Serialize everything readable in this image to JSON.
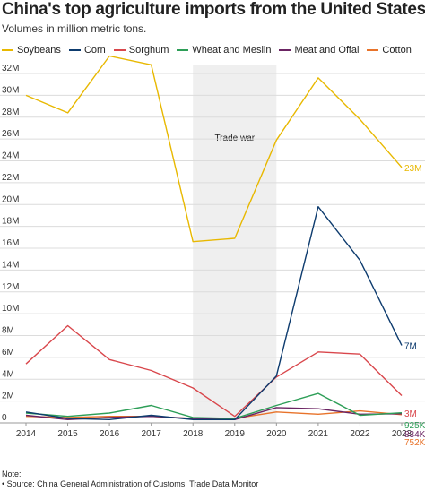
{
  "header": {
    "title": "China's top agriculture imports from the United States",
    "subtitle": "Volumes in million metric tons."
  },
  "colors": {
    "Soybeans": "#e8b800",
    "Corn": "#0d3b6e",
    "Sorghum": "#d9474c",
    "Wheat and Meslin": "#2d9e57",
    "Meat and Offal": "#6b2463",
    "Cotton": "#e8732a",
    "shade": "#efefef",
    "grid": "#dcdcdc"
  },
  "chart_data": {
    "type": "line",
    "title": "China's top agriculture imports from the United States",
    "subtitle": "Volumes in million metric tons.",
    "x": [
      "2014",
      "2015",
      "2016",
      "2017",
      "2018",
      "2019",
      "2020",
      "2021",
      "2022",
      "2023"
    ],
    "ylim": [
      0,
      32
    ],
    "yticks": [
      "0",
      "2M",
      "4M",
      "6M",
      "8M",
      "10M",
      "12M",
      "14M",
      "16M",
      "18M",
      "20M",
      "22M",
      "24M",
      "26M",
      "28M",
      "30M",
      "32M"
    ],
    "grid": true,
    "legend": "top-left",
    "series": [
      {
        "name": "Soybeans",
        "values": [
          30.0,
          28.4,
          33.6,
          32.8,
          16.6,
          16.9,
          25.9,
          31.6,
          27.8,
          23.4
        ],
        "end_label": "23M"
      },
      {
        "name": "Corn",
        "values": [
          1.0,
          0.4,
          0.3,
          0.7,
          0.3,
          0.3,
          4.3,
          19.8,
          14.9,
          7.1
        ],
        "end_label": "7M"
      },
      {
        "name": "Sorghum",
        "values": [
          5.4,
          8.9,
          5.8,
          4.8,
          3.2,
          0.6,
          4.2,
          6.5,
          6.3,
          2.5
        ],
        "end_label": "3M"
      },
      {
        "name": "Wheat and Meslin",
        "values": [
          0.9,
          0.6,
          0.9,
          1.6,
          0.5,
          0.4,
          1.6,
          2.7,
          0.7,
          0.925
        ],
        "end_label": "925K"
      },
      {
        "name": "Meat and Offal",
        "values": [
          0.7,
          0.3,
          0.5,
          0.6,
          0.4,
          0.3,
          1.4,
          1.3,
          0.8,
          0.834
        ],
        "end_label": "834K"
      },
      {
        "name": "Cotton",
        "values": [
          0.6,
          0.5,
          0.6,
          0.6,
          0.4,
          0.4,
          1.0,
          0.8,
          1.1,
          0.752
        ],
        "end_label": "752K"
      }
    ],
    "annotations": [
      {
        "type": "shaded-range",
        "from": "2018",
        "to": "2020",
        "label": "Trade war"
      }
    ]
  },
  "notes": {
    "heading": "Note:",
    "source": "• Source: China General Administration of Customs, Trade Data Monitor"
  }
}
